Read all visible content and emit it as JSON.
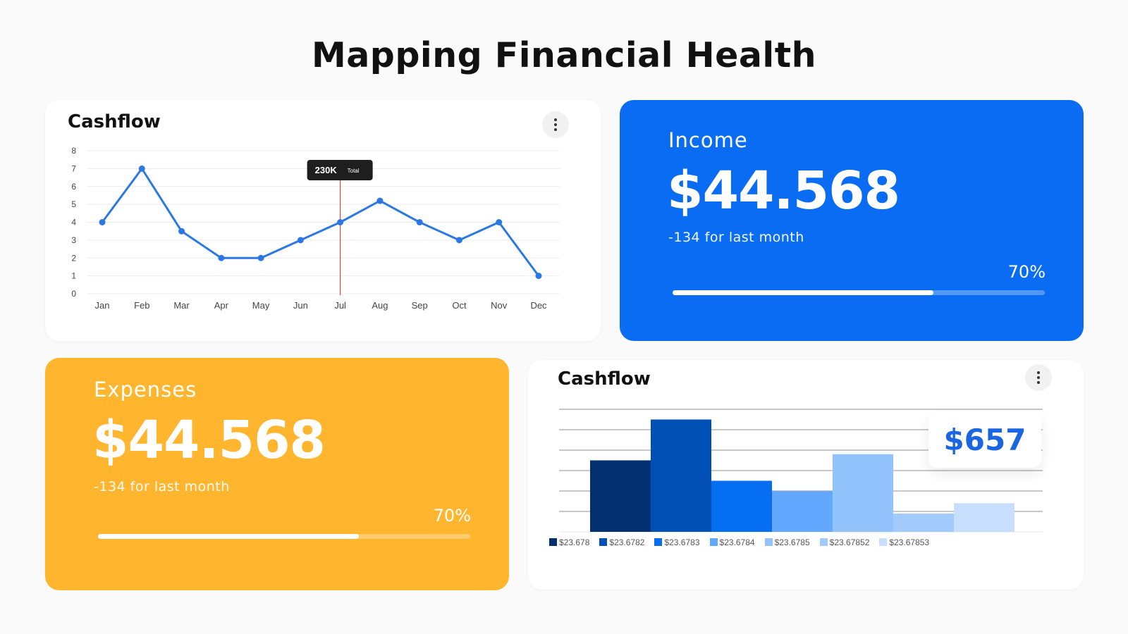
{
  "page": {
    "title": "Mapping Financial Health"
  },
  "colors": {
    "income_bg": "#0a6cf2",
    "expense_bg": "#ffb52d",
    "line": "#2b78e4",
    "tooltip_line": "#e0202a"
  },
  "line_card": {
    "title": "Cashflow",
    "menu_icon": "more-vertical-icon",
    "tooltip": {
      "value": "230K",
      "label": "Total"
    }
  },
  "income": {
    "label": "Income",
    "value": "$44.568",
    "delta": "-134 for last month",
    "percent_text": "70%",
    "progress": 0.7
  },
  "expenses": {
    "label": "Expenses",
    "value": "$44.568",
    "delta": "-134 for last month",
    "percent_text": "70%",
    "progress": 0.7
  },
  "bar_card": {
    "title": "Cashflow",
    "menu_icon": "more-vertical-icon",
    "callout": "$657"
  },
  "chart_data": [
    {
      "type": "line",
      "title": "Cashflow",
      "categories": [
        "Jan",
        "Feb",
        "Mar",
        "Apr",
        "May",
        "Jun",
        "Jul",
        "Aug",
        "Sep",
        "Oct",
        "Nov",
        "Dec"
      ],
      "values": [
        4,
        7,
        3.5,
        2,
        2,
        3,
        4,
        5.2,
        4,
        3,
        4,
        1
      ],
      "ylim": [
        0,
        8
      ],
      "yticks": [
        0,
        1,
        2,
        3,
        4,
        5,
        6,
        7,
        8
      ],
      "grid": true,
      "highlight": {
        "category": "Jul",
        "label": "230K",
        "sublabel": "Total"
      }
    },
    {
      "type": "bar",
      "title": "Cashflow",
      "categories": [
        "$23.678",
        "$23.6782",
        "$23.6783",
        "$23.6784",
        "$23.6785",
        "$23.67852",
        "$23.67853"
      ],
      "values": [
        3.5,
        5.5,
        2.5,
        2,
        3.8,
        0.9,
        1.4
      ],
      "colors": [
        "#03306f",
        "#0050b5",
        "#066ef0",
        "#62a8ff",
        "#92c3fc",
        "#a2cbfb",
        "#c8defd"
      ],
      "ylim": [
        0,
        6
      ],
      "grid": true,
      "legend": "bottom"
    }
  ]
}
